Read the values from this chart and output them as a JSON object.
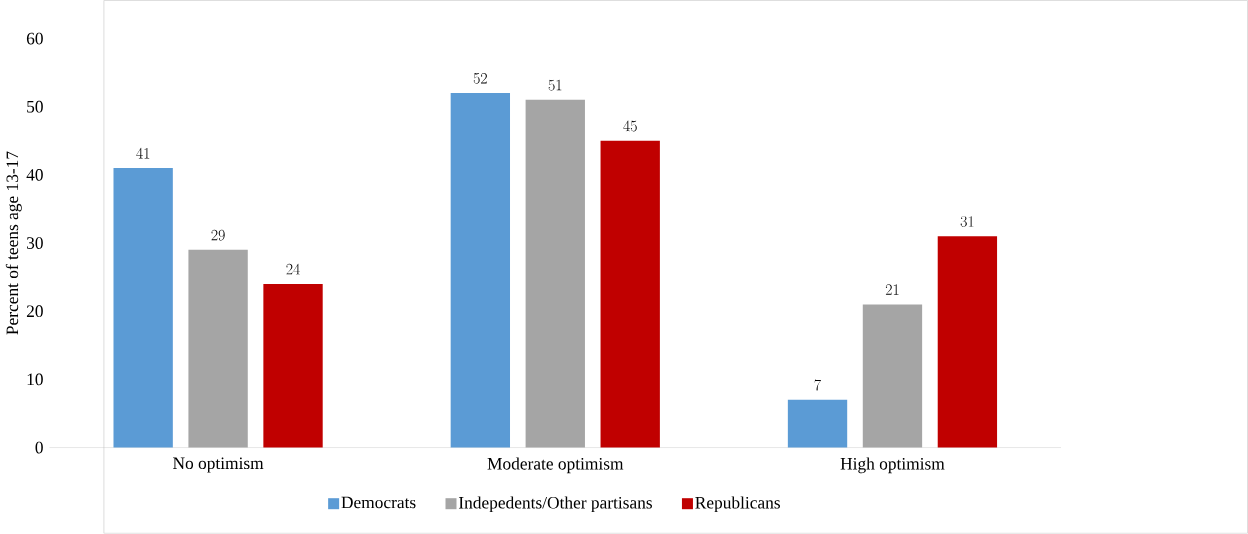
{
  "chart_data": {
    "type": "bar",
    "ylabel": "Percent of teens age 13-17",
    "categories": [
      "No optimism",
      "Moderate optimism",
      "High optimism"
    ],
    "series": [
      {
        "name": "Democrats",
        "color": "#5b9bd5",
        "values": [
          41,
          52,
          7
        ]
      },
      {
        "name": "Indepedents/Other partisans",
        "color": "#a5a5a5",
        "values": [
          29,
          51,
          21
        ]
      },
      {
        "name": "Republicans",
        "color": "#c00000",
        "values": [
          24,
          45,
          31
        ]
      }
    ],
    "ylim": [
      0,
      60
    ],
    "yticks": [
      0,
      10,
      20,
      30,
      40,
      50,
      60
    ],
    "grid": false,
    "legend": "bottom",
    "data_labels": true
  }
}
